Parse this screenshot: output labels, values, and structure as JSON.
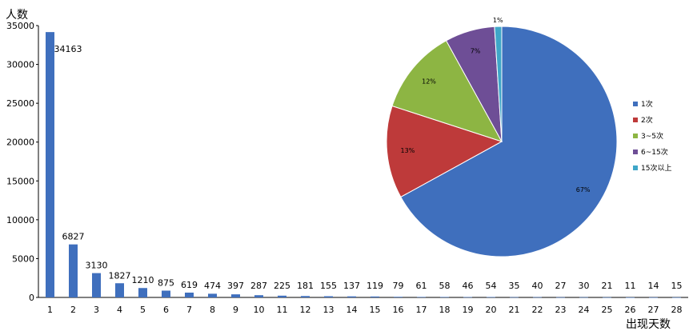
{
  "chart_data": [
    {
      "type": "bar",
      "ylabel": "人数",
      "xlabel": "出现天数",
      "ylim": [
        0,
        35000
      ],
      "yticks": [
        0,
        5000,
        10000,
        15000,
        20000,
        25000,
        30000,
        35000
      ],
      "grid": false,
      "color": "#3f6fbd",
      "categories": [
        "1",
        "2",
        "3",
        "4",
        "5",
        "6",
        "7",
        "8",
        "9",
        "10",
        "11",
        "12",
        "13",
        "14",
        "15",
        "16",
        "17",
        "18",
        "19",
        "20",
        "21",
        "22",
        "23",
        "24",
        "25",
        "26",
        "27",
        "28"
      ],
      "values": [
        34163,
        6827,
        3130,
        1827,
        1210,
        875,
        619,
        474,
        397,
        287,
        225,
        181,
        155,
        137,
        119,
        79,
        61,
        58,
        46,
        54,
        35,
        40,
        27,
        30,
        21,
        11,
        14,
        15
      ]
    },
    {
      "type": "pie",
      "legend_position": "right",
      "slices": [
        {
          "name": "1次",
          "value": 67,
          "label": "67%",
          "color": "#3f6fbd"
        },
        {
          "name": "2次",
          "value": 13,
          "label": "13%",
          "color": "#be3a3a"
        },
        {
          "name": "3~5次",
          "value": 12,
          "label": "12%",
          "color": "#8db543"
        },
        {
          "name": "6~15次",
          "value": 7,
          "label": "7%",
          "color": "#6e4e96"
        },
        {
          "name": "15次以上",
          "value": 1,
          "label": "1%",
          "color": "#3fa6c8"
        }
      ]
    }
  ]
}
